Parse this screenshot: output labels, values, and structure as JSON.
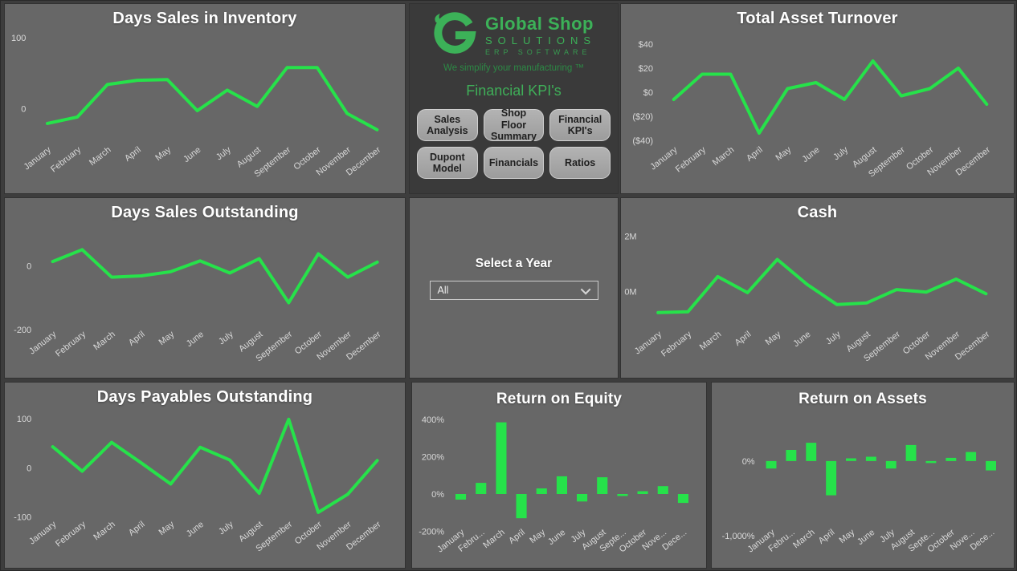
{
  "center": {
    "logo": {
      "brand_line1": "Global Shop",
      "brand_line2": "SOLUTIONS",
      "brand_line3": "ERP SOFTWARE",
      "tagline": "We simplify your manufacturing ™"
    },
    "title": "Financial KPI's",
    "nav_buttons": [
      "Sales Analysis",
      "Shop Floor Summary",
      "Financial KPI's",
      "Dupont Model",
      "Financials",
      "Ratios"
    ]
  },
  "year_filter": {
    "label": "Select a Year",
    "value": "All"
  },
  "colors": {
    "page_bg": "#3d3d3d",
    "panel_bg": "#676767",
    "dark_panel_bg": "#3a3a3a",
    "title_text": "#ffffff",
    "axis_text": "#d9d9d9",
    "series_green": "#26e24a",
    "logo_green": "#3cb158",
    "button_bg": "#a8a8a8",
    "button_text": "#1f1f1f"
  },
  "chart_data": [
    {
      "id": "days-sales-in-inventory",
      "type": "line",
      "title": "Days Sales in Inventory",
      "categories": [
        "January",
        "February",
        "March",
        "April",
        "May",
        "June",
        "July",
        "August",
        "September",
        "October",
        "November",
        "December"
      ],
      "values": [
        -21,
        -12,
        34,
        40,
        41,
        -3,
        26,
        3,
        58,
        58,
        -7,
        -30
      ],
      "ylim": [
        -45,
        98
      ],
      "yticks": [
        {
          "v": 100,
          "label": "100"
        },
        {
          "v": 0,
          "label": "0"
        }
      ],
      "grid": false,
      "legend": "none",
      "x_label_rotation": -38
    },
    {
      "id": "total-asset-turnover",
      "type": "line",
      "title": "Total Asset Turnover",
      "categories": [
        "January",
        "February",
        "March",
        "April",
        "May",
        "June",
        "July",
        "August",
        "September",
        "October",
        "November",
        "December"
      ],
      "values": [
        -6,
        15,
        15,
        -34,
        3,
        8,
        -6,
        26,
        -3,
        3,
        20,
        -10
      ],
      "ylim": [
        -40,
        44
      ],
      "yticks": [
        {
          "v": 40,
          "label": "$40"
        },
        {
          "v": 20,
          "label": "$20"
        },
        {
          "v": 0,
          "label": "$0"
        },
        {
          "v": -20,
          "label": "($20)"
        },
        {
          "v": -40,
          "label": "($40)"
        }
      ],
      "grid": false,
      "legend": "none",
      "x_label_rotation": -38
    },
    {
      "id": "days-sales-outstanding",
      "type": "line",
      "title": "Days Sales Outstanding",
      "categories": [
        "January",
        "February",
        "March",
        "April",
        "May",
        "June",
        "July",
        "August",
        "September",
        "October",
        "November",
        "December"
      ],
      "values": [
        13,
        50,
        -36,
        -32,
        -19,
        15,
        -23,
        22,
        -116,
        37,
        -36,
        11
      ],
      "ylim": [
        -185,
        101
      ],
      "yticks": [
        {
          "v": 0,
          "label": "0"
        },
        {
          "v": -200,
          "label": "-200"
        }
      ],
      "grid": false,
      "legend": "none",
      "x_label_rotation": -38
    },
    {
      "id": "cash",
      "type": "line",
      "title": "Cash",
      "categories": [
        "January",
        "February",
        "March",
        "April",
        "May",
        "June",
        "July",
        "August",
        "September",
        "October",
        "November",
        "December"
      ],
      "values": [
        -0.76,
        -0.73,
        0.54,
        -0.04,
        1.16,
        0.26,
        -0.47,
        -0.41,
        0.07,
        -0.02,
        0.45,
        -0.08
      ],
      "unit": "M",
      "ylim": [
        -1.2,
        2.1
      ],
      "yticks": [
        {
          "v": 2,
          "label": "2M"
        },
        {
          "v": 0,
          "label": "0M"
        }
      ],
      "grid": false,
      "legend": "none",
      "x_label_rotation": -38
    },
    {
      "id": "days-payables-outstanding",
      "type": "line",
      "title": "Days Payables Outstanding",
      "categories": [
        "January",
        "February",
        "March",
        "April",
        "May",
        "June",
        "July",
        "August",
        "September",
        "October",
        "November",
        "December"
      ],
      "values": [
        43,
        -7,
        52,
        10,
        -33,
        42,
        16,
        -52,
        99,
        -91,
        -54,
        15
      ],
      "ylim": [
        -96,
        102
      ],
      "yticks": [
        {
          "v": 100,
          "label": "100"
        },
        {
          "v": 0,
          "label": "0"
        },
        {
          "v": -100,
          "label": "-100"
        }
      ],
      "grid": false,
      "legend": "none",
      "x_label_rotation": -38
    },
    {
      "id": "return-on-equity",
      "type": "bar",
      "title": "Return on Equity",
      "categories": [
        "January",
        "Febru...",
        "March",
        "April",
        "May",
        "June",
        "July",
        "August",
        "Septe...",
        "October",
        "Nove...",
        "Dece..."
      ],
      "values": [
        -30,
        60,
        385,
        -130,
        30,
        95,
        -40,
        90,
        -8,
        15,
        42,
        -48
      ],
      "unit": "%",
      "ylim": [
        -155,
        409
      ],
      "yticks": [
        {
          "v": 400,
          "label": "400%"
        },
        {
          "v": 200,
          "label": "200%"
        },
        {
          "v": 0,
          "label": "0%"
        },
        {
          "v": -200,
          "label": "-200%"
        }
      ],
      "grid": false,
      "legend": "none",
      "x_label_rotation": -38
    },
    {
      "id": "return-on-assets",
      "type": "bar",
      "title": "Return on Assets",
      "categories": [
        "January",
        "Febru...",
        "March",
        "April",
        "May",
        "June",
        "July",
        "August",
        "Septe...",
        "October",
        "Nove...",
        "Dece..."
      ],
      "values": [
        -100,
        150,
        245,
        -460,
        36,
        58,
        -100,
        215,
        -25,
        43,
        122,
        -126
      ],
      "unit": "%",
      "ylim": [
        -830,
        580
      ],
      "yticks": [
        {
          "v": 0,
          "label": "0%"
        },
        {
          "v": -1000,
          "label": "-1,000%"
        }
      ],
      "grid": false,
      "legend": "none",
      "x_label_rotation": -38
    }
  ]
}
